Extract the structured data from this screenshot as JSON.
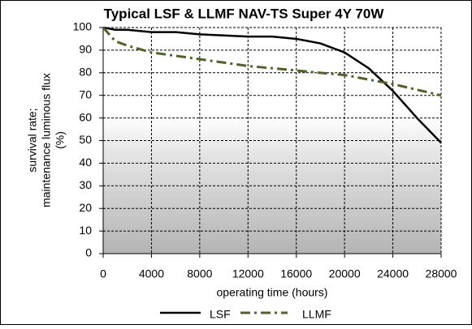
{
  "chart_data": {
    "type": "line",
    "title": "Typical LSF & LLMF NAV-TS Super 4Y 70W",
    "y_label": [
      "survival rate;",
      "maintenance luminous flux",
      "(%)"
    ],
    "x_label": "operating time  (hours)",
    "xlim": [
      0,
      28000
    ],
    "xticks": [
      0,
      4000,
      8000,
      12000,
      16000,
      20000,
      24000,
      28000
    ],
    "ylim": [
      0,
      100
    ],
    "yticks": [
      0,
      10,
      20,
      30,
      40,
      50,
      60,
      70,
      80,
      90,
      100
    ],
    "grid": true,
    "legend": "bottom",
    "series": [
      {
        "name": "LSF",
        "color": "#000000",
        "line_style": "solid",
        "x": [
          0,
          1000,
          2000,
          4000,
          6000,
          8000,
          10000,
          12000,
          14000,
          16000,
          18000,
          20000,
          22000,
          24000,
          26000,
          28000
        ],
        "values": [
          100,
          99,
          99,
          98,
          98,
          97,
          96.5,
          96,
          96,
          95,
          93,
          89,
          82,
          72,
          60,
          49
        ]
      },
      {
        "name": "LLMF",
        "color": "#4f6228",
        "line_style": "dashdot",
        "x": [
          0,
          1000,
          2000,
          4000,
          8000,
          12000,
          16000,
          20000,
          22000,
          24000,
          26000,
          28000
        ],
        "values": [
          100,
          94,
          92,
          89,
          86,
          83,
          81,
          79,
          77,
          75,
          72.5,
          70
        ]
      }
    ]
  }
}
